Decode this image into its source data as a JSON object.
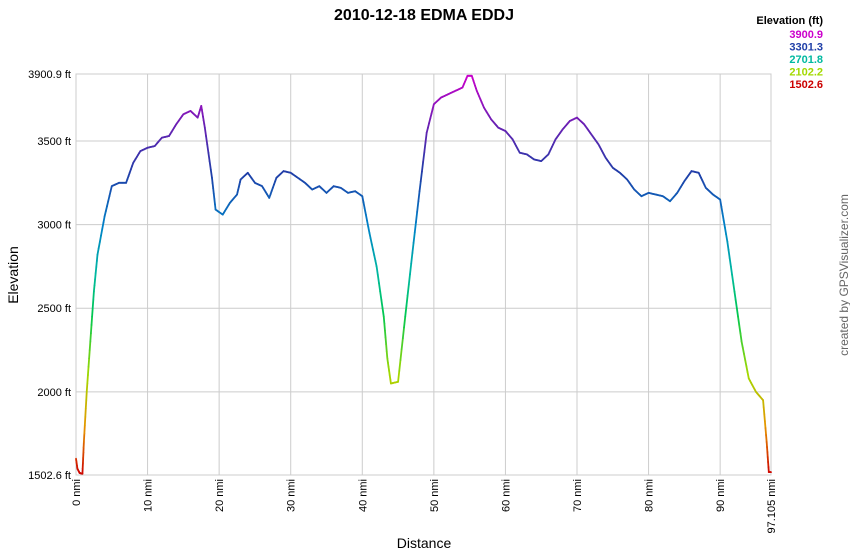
{
  "chart_data": {
    "type": "line",
    "title": "2010-12-18 EDMA EDDJ",
    "xlabel": "Distance",
    "ylabel": "Elevation",
    "xlim": [
      0,
      97.105
    ],
    "ylim": [
      1502.6,
      3900.9
    ],
    "x_ticks": [
      {
        "v": 0,
        "label": "0 nmi"
      },
      {
        "v": 10,
        "label": "10 nmi"
      },
      {
        "v": 20,
        "label": "20 nmi"
      },
      {
        "v": 30,
        "label": "30 nmi"
      },
      {
        "v": 40,
        "label": "40 nmi"
      },
      {
        "v": 50,
        "label": "50 nmi"
      },
      {
        "v": 60,
        "label": "60 nmi"
      },
      {
        "v": 70,
        "label": "70 nmi"
      },
      {
        "v": 80,
        "label": "80 nmi"
      },
      {
        "v": 90,
        "label": "90 nmi"
      },
      {
        "v": 97.105,
        "label": "97.105 nmi"
      }
    ],
    "y_ticks": [
      {
        "v": 1502.6,
        "label": "1502.6 ft"
      },
      {
        "v": 2000,
        "label": "2000 ft"
      },
      {
        "v": 2500,
        "label": "2500 ft"
      },
      {
        "v": 3000,
        "label": "3000 ft"
      },
      {
        "v": 3500,
        "label": "3500 ft"
      },
      {
        "v": 3900.9,
        "label": "3900.9 ft"
      }
    ],
    "grid": true,
    "legend": {
      "title": "Elevation (ft)",
      "placement": "top-right",
      "entries": [
        {
          "label": "3900.9",
          "color": "#cc00cc"
        },
        {
          "label": "3301.3",
          "color": "#1f3fa8"
        },
        {
          "label": "2701.8",
          "color": "#00b9a0"
        },
        {
          "label": "2102.2",
          "color": "#a3d900"
        },
        {
          "label": "1502.6",
          "color": "#cc0000"
        }
      ]
    },
    "series": [
      {
        "points": [
          [
            0.0,
            1600
          ],
          [
            0.2,
            1540
          ],
          [
            0.5,
            1515
          ],
          [
            0.9,
            1510
          ],
          [
            1.1,
            1700
          ],
          [
            1.5,
            2000
          ],
          [
            2.0,
            2300
          ],
          [
            2.5,
            2600
          ],
          [
            3.0,
            2820
          ],
          [
            4.0,
            3050
          ],
          [
            5.0,
            3230
          ],
          [
            6.0,
            3250
          ],
          [
            7.0,
            3250
          ],
          [
            8.0,
            3370
          ],
          [
            9.0,
            3440
          ],
          [
            10.0,
            3460
          ],
          [
            11.0,
            3470
          ],
          [
            12.0,
            3520
          ],
          [
            13.0,
            3530
          ],
          [
            14.0,
            3600
          ],
          [
            15.0,
            3660
          ],
          [
            16.0,
            3680
          ],
          [
            17.0,
            3640
          ],
          [
            17.5,
            3710
          ],
          [
            18.0,
            3580
          ],
          [
            19.0,
            3280
          ],
          [
            19.5,
            3090
          ],
          [
            20.5,
            3060
          ],
          [
            21.5,
            3130
          ],
          [
            22.5,
            3180
          ],
          [
            23.0,
            3270
          ],
          [
            24.0,
            3310
          ],
          [
            25.0,
            3250
          ],
          [
            26.0,
            3230
          ],
          [
            27.0,
            3160
          ],
          [
            28.0,
            3280
          ],
          [
            29.0,
            3320
          ],
          [
            30.0,
            3310
          ],
          [
            31.0,
            3280
          ],
          [
            32.0,
            3250
          ],
          [
            33.0,
            3210
          ],
          [
            34.0,
            3230
          ],
          [
            35.0,
            3190
          ],
          [
            36.0,
            3230
          ],
          [
            37.0,
            3220
          ],
          [
            38.0,
            3190
          ],
          [
            39.0,
            3200
          ],
          [
            40.0,
            3170
          ],
          [
            41.0,
            2950
          ],
          [
            42.0,
            2750
          ],
          [
            43.0,
            2450
          ],
          [
            43.5,
            2200
          ],
          [
            44.0,
            2050
          ],
          [
            45.0,
            2060
          ],
          [
            46.0,
            2450
          ],
          [
            47.0,
            2830
          ],
          [
            48.0,
            3200
          ],
          [
            49.0,
            3550
          ],
          [
            50.0,
            3720
          ],
          [
            51.0,
            3760
          ],
          [
            52.0,
            3780
          ],
          [
            53.0,
            3800
          ],
          [
            54.0,
            3820
          ],
          [
            54.7,
            3890
          ],
          [
            55.3,
            3890
          ],
          [
            56.0,
            3800
          ],
          [
            57.0,
            3700
          ],
          [
            58.0,
            3630
          ],
          [
            59.0,
            3580
          ],
          [
            60.0,
            3560
          ],
          [
            61.0,
            3510
          ],
          [
            62.0,
            3430
          ],
          [
            63.0,
            3420
          ],
          [
            64.0,
            3390
          ],
          [
            65.0,
            3380
          ],
          [
            66.0,
            3420
          ],
          [
            67.0,
            3510
          ],
          [
            68.0,
            3570
          ],
          [
            69.0,
            3620
          ],
          [
            70.0,
            3640
          ],
          [
            71.0,
            3600
          ],
          [
            72.0,
            3540
          ],
          [
            73.0,
            3480
          ],
          [
            74.0,
            3400
          ],
          [
            75.0,
            3340
          ],
          [
            76.0,
            3310
          ],
          [
            77.0,
            3270
          ],
          [
            78.0,
            3210
          ],
          [
            79.0,
            3170
          ],
          [
            80.0,
            3190
          ],
          [
            81.0,
            3180
          ],
          [
            82.0,
            3170
          ],
          [
            83.0,
            3140
          ],
          [
            84.0,
            3190
          ],
          [
            85.0,
            3260
          ],
          [
            86.0,
            3320
          ],
          [
            87.0,
            3310
          ],
          [
            88.0,
            3220
          ],
          [
            89.0,
            3180
          ],
          [
            90.0,
            3150
          ],
          [
            91.0,
            2900
          ],
          [
            92.0,
            2600
          ],
          [
            93.0,
            2300
          ],
          [
            94.0,
            2080
          ],
          [
            95.0,
            2000
          ],
          [
            96.0,
            1950
          ],
          [
            96.5,
            1700
          ],
          [
            96.8,
            1520
          ],
          [
            97.105,
            1520
          ]
        ]
      }
    ]
  },
  "credit": "created by GPSVisualizer.com"
}
